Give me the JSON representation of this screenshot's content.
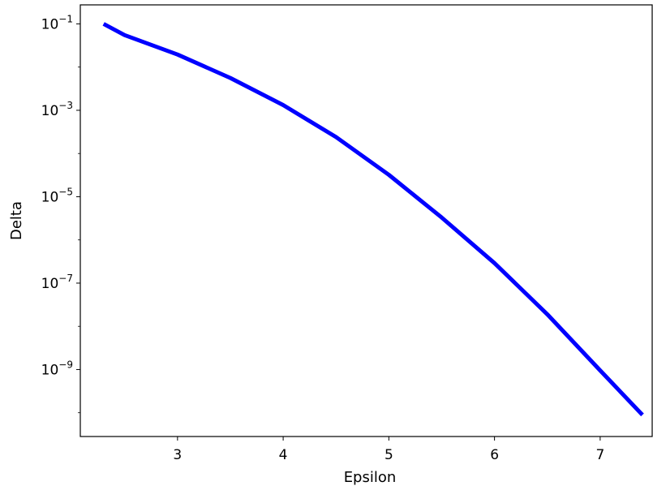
{
  "chart_data": {
    "type": "line",
    "title": "",
    "xlabel": "Epsilon",
    "ylabel": "Delta",
    "xlim": [
      2.08,
      7.5
    ],
    "ylim_log10": [
      -10.55,
      -0.56
    ],
    "yscale": "log",
    "grid": false,
    "legend": null,
    "x_ticks": [
      3,
      4,
      5,
      6,
      7
    ],
    "y_ticks": [
      {
        "base": "10",
        "exp": "−1",
        "value_log10": -1
      },
      {
        "base": "10",
        "exp": "−3",
        "value_log10": -3
      },
      {
        "base": "10",
        "exp": "−5",
        "value_log10": -5
      },
      {
        "base": "10",
        "exp": "−7",
        "value_log10": -7
      },
      {
        "base": "10",
        "exp": "−9",
        "value_log10": -9
      }
    ],
    "series": [
      {
        "color": "#0000ff",
        "x": [
          2.3,
          2.5,
          3.0,
          3.5,
          4.0,
          4.5,
          5.0,
          5.5,
          6.0,
          6.5,
          7.0,
          7.4
        ],
        "y": [
          0.1,
          0.055,
          0.0195,
          0.0056,
          0.00132,
          0.00024,
          3.2e-05,
          3.3e-06,
          2.9e-07,
          1.9e-08,
          9.5e-10,
          8.9e-11
        ]
      }
    ]
  }
}
